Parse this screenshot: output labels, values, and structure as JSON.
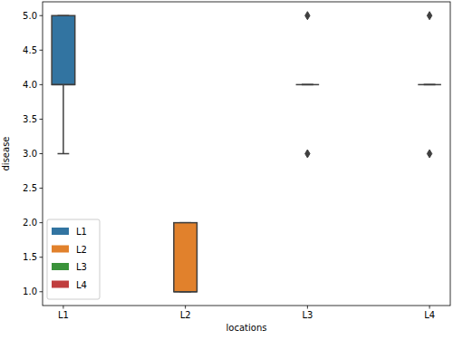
{
  "chart_data": {
    "type": "box",
    "x_label": "locations",
    "y_label": "disease",
    "categories": [
      "L1",
      "L2",
      "L3",
      "L4"
    ],
    "ylim": [
      0.8,
      5.2
    ],
    "yticks": [
      {
        "value": 1,
        "label": "1.0"
      },
      {
        "value": 1.5,
        "label": "1.5"
      },
      {
        "value": 2,
        "label": "2.0"
      },
      {
        "value": 2.5,
        "label": "2.5"
      },
      {
        "value": 3,
        "label": "3.0"
      },
      {
        "value": 3.5,
        "label": "3.5"
      },
      {
        "value": 4,
        "label": "4.0"
      },
      {
        "value": 4.5,
        "label": "4.5"
      },
      {
        "value": 5,
        "label": "5.0"
      }
    ],
    "legend": "lower left",
    "series": [
      {
        "name": "L1",
        "color": "#3274a1",
        "min": 3,
        "q1": 4,
        "median": 4,
        "q3": 5,
        "max": 5,
        "outliers": []
      },
      {
        "name": "L2",
        "color": "#e1812c",
        "min": 1,
        "q1": 1,
        "median": 1,
        "q3": 2,
        "max": 2,
        "outliers": []
      },
      {
        "name": "L3",
        "color": "#3a923a",
        "min": 4,
        "q1": 4,
        "median": 4,
        "q3": 4,
        "max": 4,
        "outliers": [
          5,
          3
        ]
      },
      {
        "name": "L4",
        "color": "#c03d3e",
        "min": 4,
        "q1": 4,
        "median": 4,
        "q3": 4,
        "max": 4,
        "outliers": [
          5,
          3
        ]
      }
    ]
  }
}
